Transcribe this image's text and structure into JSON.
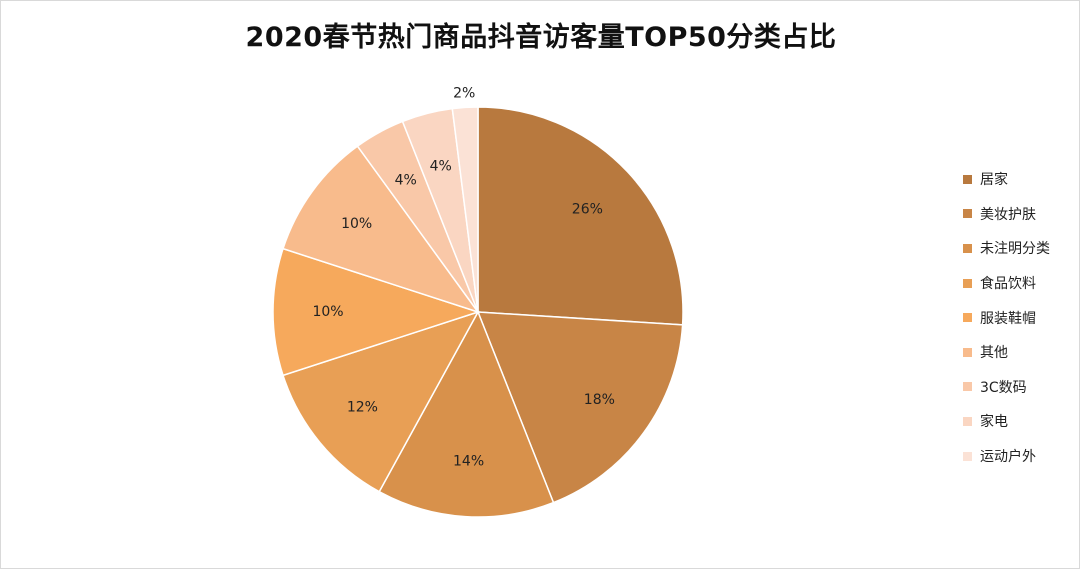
{
  "chart_data": {
    "type": "pie",
    "title": "2020春节热门商品抖音访客量TOP50分类占比",
    "legend_position": "right",
    "start": "12 o'clock",
    "direction": "clockwise",
    "slices": [
      {
        "label": "居家",
        "value": 26,
        "display": "26%",
        "color": "#b8793e"
      },
      {
        "label": "美妆护肤",
        "value": 18,
        "display": "18%",
        "color": "#c88546"
      },
      {
        "label": "未注明分类",
        "value": 14,
        "display": "14%",
        "color": "#d8914b"
      },
      {
        "label": "食品饮料",
        "value": 12,
        "display": "12%",
        "color": "#e89f55"
      },
      {
        "label": "服装鞋帽",
        "value": 10,
        "display": "10%",
        "color": "#f6a95c"
      },
      {
        "label": "其他",
        "value": 10,
        "display": "10%",
        "color": "#f8bb8c"
      },
      {
        "label": "3C数码",
        "value": 4,
        "display": "4%",
        "color": "#f9c8a8"
      },
      {
        "label": "家电",
        "value": 4,
        "display": "4%",
        "color": "#fad6c2"
      },
      {
        "label": "运动户外",
        "value": 2,
        "display": "2%",
        "color": "#fbe2d6"
      }
    ]
  }
}
